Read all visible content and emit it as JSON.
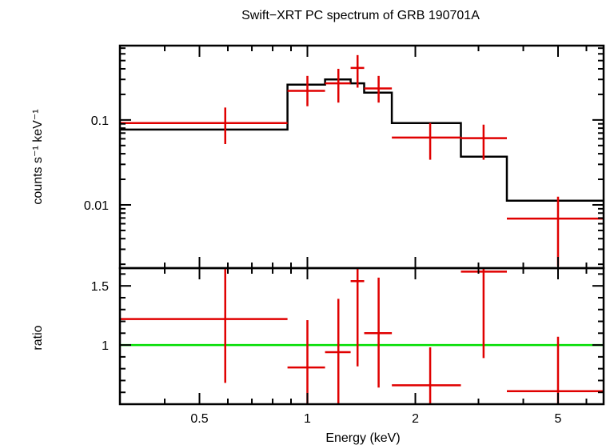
{
  "chart_data": {
    "type": "scatter",
    "title": "Swift−XRT PC spectrum of GRB 190701A",
    "xlabel": "Energy (keV)",
    "xscale": "log",
    "xlim": [
      0.3,
      6.7
    ],
    "xticks": [
      {
        "value": 0.5,
        "label": "0.5"
      },
      {
        "value": 1,
        "label": "1"
      },
      {
        "value": 2,
        "label": "2"
      },
      {
        "value": 5,
        "label": "5"
      }
    ],
    "colors": {
      "data": "#e00000",
      "model": "#000000",
      "unity": "#00dd00"
    },
    "panels": [
      {
        "name": "spectrum",
        "ylabel": "counts s⁻¹ keV⁻¹",
        "yscale": "log",
        "ylim": [
          0.0018,
          0.75
        ],
        "yticks": [
          {
            "value": 0.1,
            "label": "0.1"
          },
          {
            "value": 0.01,
            "label": "0.01"
          }
        ],
        "series": [
          {
            "kind": "data",
            "points": [
              {
                "x": 0.59,
                "xlo": 0.3,
                "xhi": 0.88,
                "y": 0.092,
                "ylo": 0.052,
                "yhi": 0.14
              },
              {
                "x": 1.0,
                "xlo": 0.88,
                "xhi": 1.12,
                "y": 0.22,
                "ylo": 0.145,
                "yhi": 0.33
              },
              {
                "x": 1.22,
                "xlo": 1.12,
                "xhi": 1.32,
                "y": 0.27,
                "ylo": 0.16,
                "yhi": 0.4
              },
              {
                "x": 1.38,
                "xlo": 1.32,
                "xhi": 1.44,
                "y": 0.41,
                "ylo": 0.24,
                "yhi": 0.58
              },
              {
                "x": 1.58,
                "xlo": 1.44,
                "xhi": 1.72,
                "y": 0.235,
                "ylo": 0.16,
                "yhi": 0.33
              },
              {
                "x": 2.2,
                "xlo": 1.72,
                "xhi": 2.68,
                "y": 0.062,
                "ylo": 0.034,
                "yhi": 0.092
              },
              {
                "x": 3.1,
                "xlo": 2.68,
                "xhi": 3.6,
                "y": 0.061,
                "ylo": 0.034,
                "yhi": 0.088
              },
              {
                "x": 5.0,
                "xlo": 3.6,
                "xhi": 6.7,
                "y": 0.0069,
                "ylo": 0.0019,
                "yhi": 0.0125
              }
            ]
          },
          {
            "kind": "model-step",
            "steps": [
              {
                "xlo": 0.3,
                "xhi": 0.88,
                "y": 0.077
              },
              {
                "xlo": 0.88,
                "xhi": 1.12,
                "y": 0.26
              },
              {
                "xlo": 1.12,
                "xhi": 1.32,
                "y": 0.3
              },
              {
                "xlo": 1.32,
                "xhi": 1.44,
                "y": 0.27
              },
              {
                "xlo": 1.44,
                "xhi": 1.72,
                "y": 0.21
              },
              {
                "xlo": 1.72,
                "xhi": 2.68,
                "y": 0.092
              },
              {
                "xlo": 2.68,
                "xhi": 3.6,
                "y": 0.037
              },
              {
                "xlo": 3.6,
                "xhi": 6.7,
                "y": 0.0112
              }
            ]
          }
        ]
      },
      {
        "name": "ratio",
        "ylabel": "ratio",
        "yscale": "linear",
        "ylim": [
          0.5,
          1.65
        ],
        "yticks": [
          {
            "value": 1,
            "label": "1"
          },
          {
            "value": 1.5,
            "label": "1.5"
          }
        ],
        "minor_step": 0.1,
        "reference_line": 1,
        "series": [
          {
            "kind": "data",
            "points": [
              {
                "x": 0.59,
                "xlo": 0.3,
                "xhi": 0.88,
                "y": 1.22,
                "ylo": 0.68,
                "yhi": 1.65
              },
              {
                "x": 1.0,
                "xlo": 0.88,
                "xhi": 1.12,
                "y": 0.81,
                "ylo": 0.5,
                "yhi": 1.21
              },
              {
                "x": 1.22,
                "xlo": 1.12,
                "xhi": 1.32,
                "y": 0.94,
                "ylo": 0.5,
                "yhi": 1.39
              },
              {
                "x": 1.38,
                "xlo": 1.32,
                "xhi": 1.44,
                "y": 1.54,
                "ylo": 0.82,
                "yhi": 1.65
              },
              {
                "x": 1.58,
                "xlo": 1.44,
                "xhi": 1.72,
                "y": 1.1,
                "ylo": 0.64,
                "yhi": 1.57
              },
              {
                "x": 2.2,
                "xlo": 1.72,
                "xhi": 2.68,
                "y": 0.66,
                "ylo": 0.5,
                "yhi": 0.98
              },
              {
                "x": 3.1,
                "xlo": 2.68,
                "xhi": 3.6,
                "y": 1.62,
                "ylo": 0.89,
                "yhi": 1.65
              },
              {
                "x": 5.0,
                "xlo": 3.6,
                "xhi": 6.7,
                "y": 0.61,
                "ylo": 0.5,
                "yhi": 1.07
              }
            ]
          }
        ]
      }
    ]
  }
}
